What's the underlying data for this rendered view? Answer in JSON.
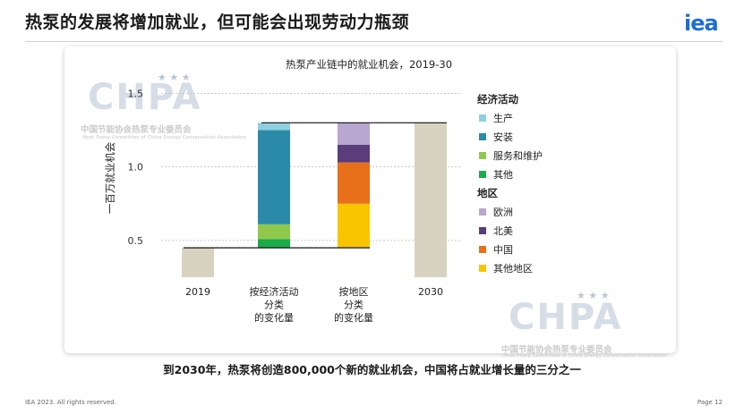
{
  "header": {
    "title": "热泵的发展将增加就业，但可能会出现劳动力瓶颈",
    "logo": "iea"
  },
  "watermark": {
    "big": "CHPA",
    "small": "中国节能协会热泵专业委员会",
    "tiny": "Heat Pump Committee of China Energy Conservation Association"
  },
  "caption": "到2030年，热泵将创造800,000个新的就业机会，中国将占就业增长量的三分之一",
  "footer": {
    "left": "IEA 2023. All rights reserved.",
    "right": "Page 12"
  },
  "chart_data": {
    "type": "waterfall-stacked-bar",
    "title": "热泵产业链中的就业机会，2019-30",
    "ylabel": "一百万就业机会",
    "ylim": [
      0.25,
      1.6
    ],
    "yticks": [
      0.5,
      1.0,
      1.5
    ],
    "tick_labels": [
      "0.5",
      "1.0",
      "1.5"
    ],
    "categories": [
      "2019",
      "按经济活动分类的变化量",
      "按地区分类的变化量",
      "2030"
    ],
    "category_label_lines": [
      [
        "2019"
      ],
      [
        "按经济活动",
        "分类",
        "的变化量"
      ],
      [
        "按地区",
        "分类",
        "的变化量"
      ],
      [
        "2030"
      ]
    ],
    "totals": {
      "2019": 0.45,
      "2030": 1.3
    },
    "by_activity": {
      "base": 0.45,
      "segments": [
        {
          "name": "其他",
          "value": 0.06,
          "color": "#1aab4b"
        },
        {
          "name": "服务和维护",
          "value": 0.1,
          "color": "#8fc84b"
        },
        {
          "name": "安装",
          "value": 0.64,
          "color": "#2a8aa8"
        },
        {
          "name": "生产",
          "value": 0.05,
          "color": "#8ecfe0"
        }
      ]
    },
    "by_region": {
      "base": 0.45,
      "segments": [
        {
          "name": "其他地区",
          "value": 0.3,
          "color": "#f9c400"
        },
        {
          "name": "中国",
          "value": 0.28,
          "color": "#e8701a"
        },
        {
          "name": "北美",
          "value": 0.12,
          "color": "#5a3d7a"
        },
        {
          "name": "欧洲",
          "value": 0.15,
          "color": "#b8a7cf"
        }
      ]
    },
    "total_color": "#d8d3c0",
    "legend": {
      "position": "right",
      "groups": [
        {
          "heading": "经济活动",
          "items": [
            {
              "name": "生产",
              "color": "#8ecfe0"
            },
            {
              "name": "安装",
              "color": "#2a8aa8"
            },
            {
              "name": "服务和维护",
              "color": "#8fc84b"
            },
            {
              "name": "其他",
              "color": "#1aab4b"
            }
          ]
        },
        {
          "heading": "地区",
          "items": [
            {
              "name": "欧洲",
              "color": "#b8a7cf"
            },
            {
              "name": "北美",
              "color": "#5a3d7a"
            },
            {
              "name": "中国",
              "color": "#e8701a"
            },
            {
              "name": "其他地区",
              "color": "#f9c400"
            }
          ]
        }
      ]
    },
    "grid": "horizontal dashed"
  }
}
